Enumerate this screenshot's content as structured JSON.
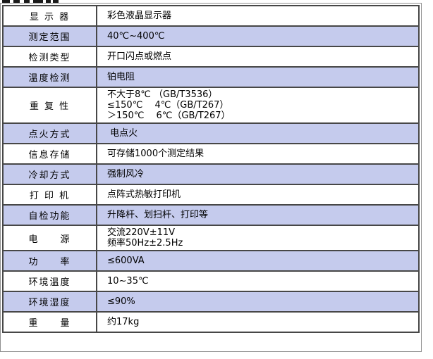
{
  "colors": {
    "row_alt": "#c5cbed",
    "row_plain": "#ffffff",
    "border_dark": "#474747",
    "border_outer": "#8f8f8f",
    "text": "#000000"
  },
  "table": {
    "rows": [
      {
        "label": "显 示 器",
        "shaded": false,
        "value_lines": [
          "彩色液晶显示器"
        ]
      },
      {
        "label": "测定范围",
        "shaded": true,
        "value_lines": [
          "40℃~400℃"
        ]
      },
      {
        "label": "检测类型",
        "shaded": false,
        "value_lines": [
          "开口闪点或燃点"
        ]
      },
      {
        "label": "温度检测",
        "shaded": true,
        "value_lines": [
          "铂电阻"
        ]
      },
      {
        "label": "重 复 性",
        "shaded": false,
        "value_lines": [
          "不大于8℃ （GB/T3536）",
          "≤150℃　 4℃（GB/T267）",
          "＞150℃　 6℃（GB/T267）"
        ]
      },
      {
        "label": "点火方式",
        "shaded": true,
        "value_lines": [
          " 电点火"
        ]
      },
      {
        "label": "信息存储",
        "shaded": false,
        "value_lines": [
          "可存储1000个测定结果"
        ]
      },
      {
        "label": "冷却方式",
        "shaded": true,
        "value_lines": [
          "强制风冷"
        ]
      },
      {
        "label": "打 印 机",
        "shaded": false,
        "value_lines": [
          "点阵式热敏打印机"
        ]
      },
      {
        "label": "自检功能",
        "shaded": true,
        "value_lines": [
          "升降杆、划扫杆、打印等"
        ]
      },
      {
        "label": "电　　源",
        "shaded": false,
        "value_lines": [
          "交流220V±11V",
          "频率50Hz±2.5Hz"
        ]
      },
      {
        "label": "功　　率",
        "shaded": true,
        "value_lines": [
          "≤600VA"
        ]
      },
      {
        "label": "环境温度",
        "shaded": false,
        "value_lines": [
          "10~35℃"
        ]
      },
      {
        "label": "环境湿度",
        "shaded": true,
        "value_lines": [
          "≤90%"
        ]
      },
      {
        "label": "重　　量",
        "shaded": false,
        "value_lines": [
          "约17kg"
        ]
      }
    ]
  }
}
